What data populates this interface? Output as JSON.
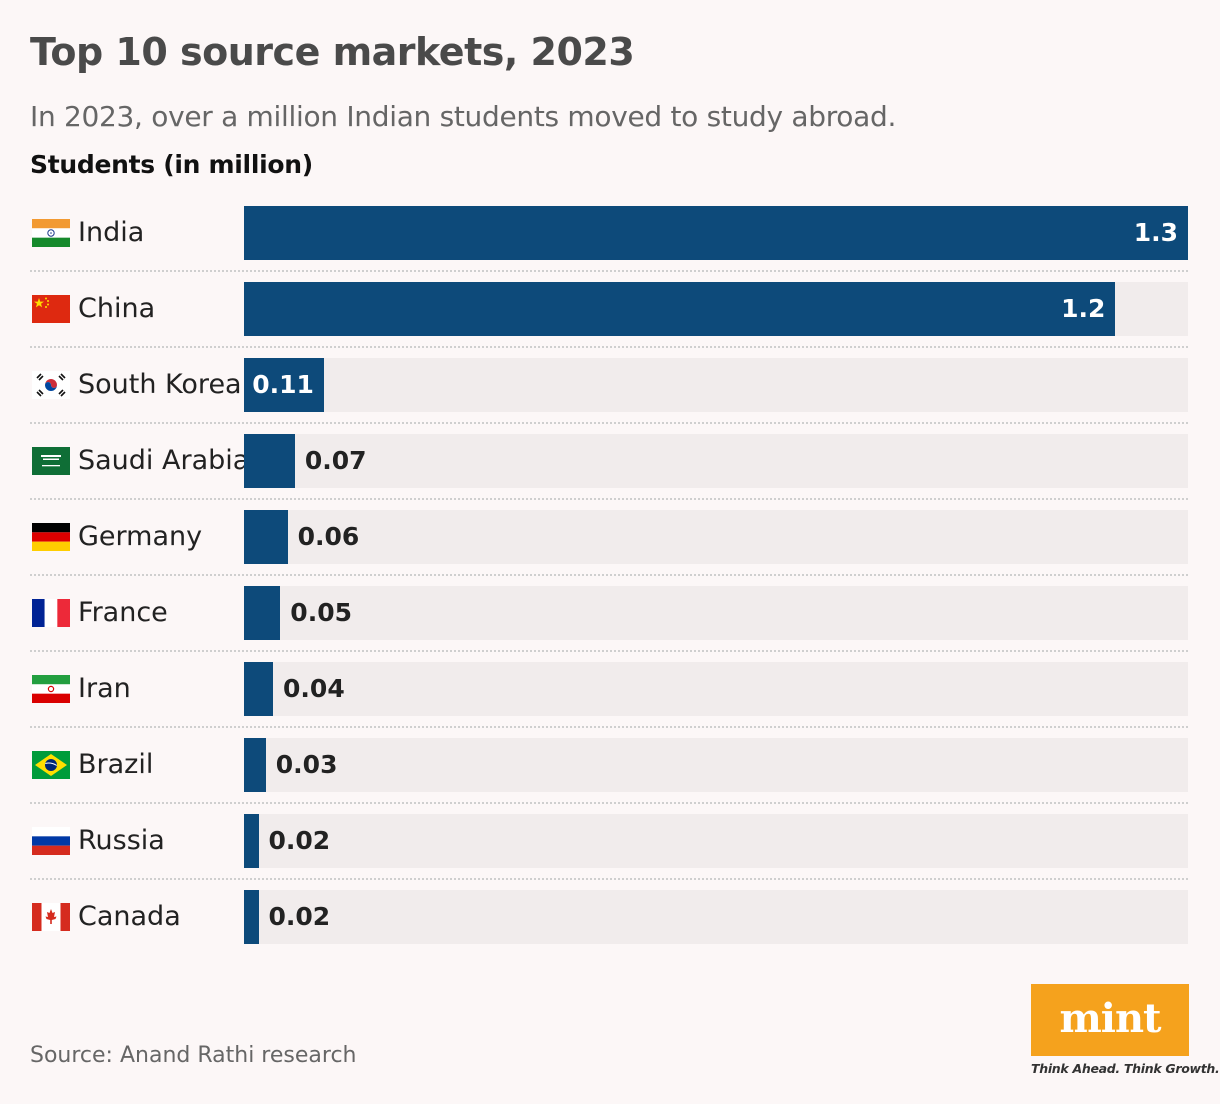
{
  "header": {
    "title": "Top 10 source markets, 2023",
    "subtitle": "In 2023, over a million Indian students moved to study abroad.",
    "unit_label": "Students (in million)"
  },
  "chart_data": {
    "type": "bar",
    "orientation": "horizontal",
    "title": "Top 10 source markets, 2023",
    "subtitle": "In 2023, over a million Indian students moved to study abroad.",
    "ylabel": "Students (in million)",
    "categories": [
      "India",
      "China",
      "South Korea",
      "Saudi Arabia",
      "Germany",
      "France",
      "Iran",
      "Brazil",
      "Russia",
      "Canada"
    ],
    "values": [
      1.3,
      1.2,
      0.11,
      0.07,
      0.06,
      0.05,
      0.04,
      0.03,
      0.02,
      0.02
    ],
    "value_labels": [
      "1.3",
      "1.2",
      "0.11",
      "0.07",
      "0.06",
      "0.05",
      "0.04",
      "0.03",
      "0.02",
      "0.02"
    ],
    "xlim": [
      0,
      1.3
    ],
    "bar_color": "#0d4a7a",
    "track_color": "#f1ecec",
    "grid": false,
    "legend": "none"
  },
  "rows": [
    {
      "flag": "india-flag-icon"
    },
    {
      "flag": "china-flag-icon"
    },
    {
      "flag": "south-korea-flag-icon"
    },
    {
      "flag": "saudi-arabia-flag-icon"
    },
    {
      "flag": "germany-flag-icon"
    },
    {
      "flag": "france-flag-icon"
    },
    {
      "flag": "iran-flag-icon"
    },
    {
      "flag": "brazil-flag-icon"
    },
    {
      "flag": "russia-flag-icon"
    },
    {
      "flag": "canada-flag-icon"
    }
  ],
  "footer": {
    "source": "Source: Anand Rathi research",
    "logo": "mint",
    "tagline": "Think Ahead. Think Growth."
  },
  "colors": {
    "background": "#fcf7f7",
    "bar": "#0d4a7a",
    "logo_bg": "#f5a21d"
  }
}
